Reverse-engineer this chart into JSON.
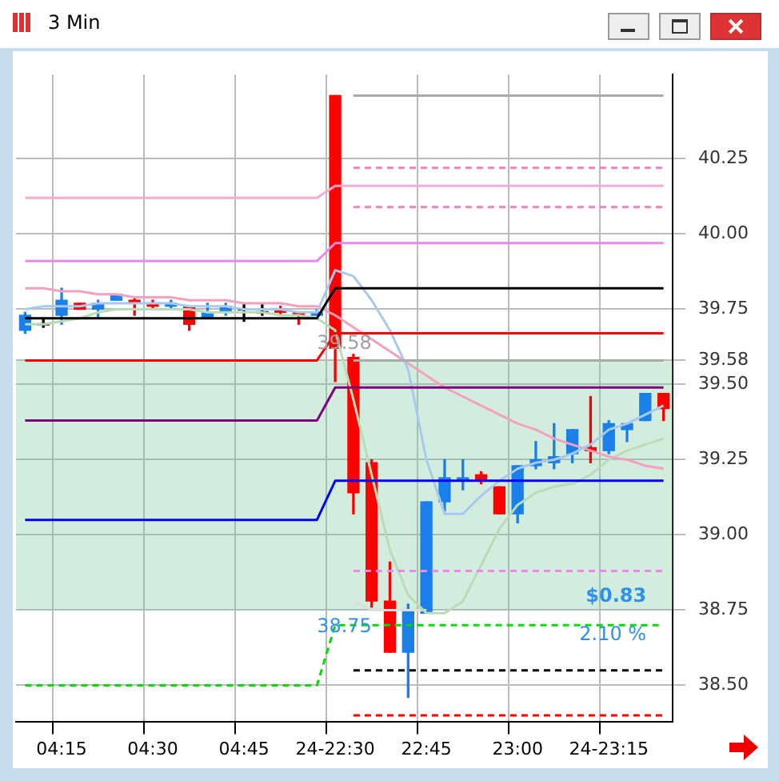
{
  "chart_data": {
    "type": "candlestick",
    "title": "3 Min",
    "categories": [
      null,
      null,
      "04:15",
      null,
      null,
      null,
      null,
      "04:30",
      null,
      null,
      null,
      null,
      "04:45",
      null,
      null,
      null,
      null,
      "24-22:30",
      null,
      null,
      null,
      null,
      "22:45",
      null,
      null,
      null,
      null,
      "23:00",
      null,
      null,
      null,
      null,
      "24-23:15",
      null,
      null,
      null
    ],
    "ohlc": [
      [
        39.68,
        39.74,
        39.67,
        39.73
      ],
      [
        39.7,
        39.72,
        39.69,
        39.7
      ],
      [
        39.73,
        39.82,
        39.7,
        39.78
      ],
      [
        39.77,
        39.77,
        39.75,
        39.75
      ],
      [
        39.75,
        39.78,
        39.72,
        39.77
      ],
      [
        39.78,
        39.8,
        39.78,
        39.8
      ],
      [
        39.78,
        39.79,
        39.73,
        39.77
      ],
      [
        39.77,
        39.78,
        39.75,
        39.76
      ],
      [
        39.76,
        39.78,
        39.75,
        39.77
      ],
      [
        39.76,
        39.76,
        39.68,
        39.7
      ],
      [
        39.72,
        39.77,
        39.72,
        39.74
      ],
      [
        39.74,
        39.77,
        39.73,
        39.76
      ],
      [
        39.75,
        39.77,
        39.71,
        39.75
      ],
      [
        39.74,
        39.77,
        39.73,
        39.74
      ],
      [
        39.75,
        39.76,
        39.73,
        39.74
      ],
      [
        39.74,
        39.74,
        39.7,
        39.73
      ],
      [
        39.73,
        39.75,
        39.73,
        39.74
      ],
      [
        40.46,
        40.46,
        39.51,
        39.62
      ],
      [
        39.59,
        39.6,
        39.07,
        39.14
      ],
      [
        39.24,
        39.25,
        38.76,
        38.78
      ],
      [
        38.78,
        38.91,
        38.61,
        38.61
      ],
      [
        38.61,
        38.77,
        38.46,
        38.75
      ],
      [
        38.74,
        39.11,
        38.74,
        39.11
      ],
      [
        39.11,
        39.25,
        39.08,
        39.19
      ],
      [
        39.18,
        39.25,
        39.15,
        39.19
      ],
      [
        39.2,
        39.21,
        39.17,
        39.18
      ],
      [
        39.16,
        39.16,
        39.07,
        39.07
      ],
      [
        39.07,
        39.23,
        39.04,
        39.23
      ],
      [
        39.23,
        39.31,
        39.22,
        39.25
      ],
      [
        39.24,
        39.37,
        39.22,
        39.26
      ],
      [
        39.27,
        39.35,
        39.24,
        39.35
      ],
      [
        39.29,
        39.46,
        39.24,
        39.28
      ],
      [
        39.28,
        39.38,
        39.27,
        39.37
      ],
      [
        39.35,
        39.37,
        39.31,
        39.37
      ],
      [
        39.38,
        39.47,
        39.38,
        39.47
      ],
      [
        39.47,
        39.47,
        39.38,
        39.42
      ]
    ],
    "colors": [
      "#1a7fe8",
      "#000000",
      "#1a7fe8",
      "#ff0000",
      "#1a7fe8",
      "#1a7fe8",
      "#ff0000",
      "#ff0000",
      "#1a7fe8",
      "#ff0000",
      "#1a7fe8",
      "#1a7fe8",
      "#000000",
      "#000000",
      "#ff0000",
      "#ff0000",
      "#1a7fe8",
      "#ff0000",
      "#ff0000",
      "#ff0000",
      "#ff0000",
      "#1a7fe8",
      "#1a7fe8",
      "#1a7fe8",
      "#1a7fe8",
      "#ff0000",
      "#ff0000",
      "#1a7fe8",
      "#1a7fe8",
      "#1a7fe8",
      "#1a7fe8",
      "#ff0000",
      "#1a7fe8",
      "#1a7fe8",
      "#1a7fe8",
      "#ff0000"
    ],
    "series": [
      {
        "type": "line",
        "color": "#f9a8d4",
        "values": [
          40.12,
          40.12,
          40.12,
          40.12,
          40.12,
          40.12,
          40.12,
          40.12,
          40.12,
          40.12,
          40.12,
          40.12,
          40.12,
          40.12,
          40.12,
          40.12,
          40.12,
          40.16,
          40.16,
          40.16,
          40.16,
          40.16,
          40.16,
          40.16,
          40.16,
          40.16,
          40.16,
          40.16,
          40.16,
          40.16,
          40.16,
          40.16,
          40.16,
          40.16,
          40.16,
          40.16
        ]
      },
      {
        "type": "line",
        "color": "#e88ae8",
        "values": [
          39.91,
          39.91,
          39.91,
          39.91,
          39.91,
          39.91,
          39.91,
          39.91,
          39.91,
          39.91,
          39.91,
          39.91,
          39.91,
          39.91,
          39.91,
          39.91,
          39.91,
          39.97,
          39.97,
          39.97,
          39.97,
          39.97,
          39.97,
          39.97,
          39.97,
          39.97,
          39.97,
          39.97,
          39.97,
          39.97,
          39.97,
          39.97,
          39.97,
          39.97,
          39.97,
          39.97
        ]
      },
      {
        "type": "line",
        "color": "#000000",
        "values": [
          39.72,
          39.72,
          39.72,
          39.72,
          39.72,
          39.72,
          39.72,
          39.72,
          39.72,
          39.72,
          39.72,
          39.72,
          39.72,
          39.72,
          39.72,
          39.72,
          39.72,
          39.82,
          39.82,
          39.82,
          39.82,
          39.82,
          39.82,
          39.82,
          39.82,
          39.82,
          39.82,
          39.82,
          39.82,
          39.82,
          39.82,
          39.82,
          39.82,
          39.82,
          39.82,
          39.82
        ]
      },
      {
        "type": "line",
        "color": "#ff0000",
        "values": [
          39.58,
          39.58,
          39.58,
          39.58,
          39.58,
          39.58,
          39.58,
          39.58,
          39.58,
          39.58,
          39.58,
          39.58,
          39.58,
          39.58,
          39.58,
          39.58,
          39.58,
          39.67,
          39.67,
          39.67,
          39.67,
          39.67,
          39.67,
          39.67,
          39.67,
          39.67,
          39.67,
          39.67,
          39.67,
          39.67,
          39.67,
          39.67,
          39.67,
          39.67,
          39.67,
          39.67
        ]
      },
      {
        "type": "line",
        "color": "#800080",
        "values": [
          39.38,
          39.38,
          39.38,
          39.38,
          39.38,
          39.38,
          39.38,
          39.38,
          39.38,
          39.38,
          39.38,
          39.38,
          39.38,
          39.38,
          39.38,
          39.38,
          39.38,
          39.49,
          39.49,
          39.49,
          39.49,
          39.49,
          39.49,
          39.49,
          39.49,
          39.49,
          39.49,
          39.49,
          39.49,
          39.49,
          39.49,
          39.49,
          39.49,
          39.49,
          39.49,
          39.49
        ]
      },
      {
        "type": "line",
        "color": "#0000ff",
        "values": [
          39.05,
          39.05,
          39.05,
          39.05,
          39.05,
          39.05,
          39.05,
          39.05,
          39.05,
          39.05,
          39.05,
          39.05,
          39.05,
          39.05,
          39.05,
          39.05,
          39.05,
          39.18,
          39.18,
          39.18,
          39.18,
          39.18,
          39.18,
          39.18,
          39.18,
          39.18,
          39.18,
          39.18,
          39.18,
          39.18,
          39.18,
          39.18,
          39.18,
          39.18,
          39.18,
          39.18
        ]
      },
      {
        "type": "line",
        "color": "#00dd00",
        "line_style": "dashed",
        "values": [
          38.5,
          38.5,
          38.5,
          38.5,
          38.5,
          38.5,
          38.5,
          38.5,
          38.5,
          38.5,
          38.5,
          38.5,
          38.5,
          38.5,
          38.5,
          38.5,
          38.5,
          38.7,
          38.7,
          38.7,
          38.7,
          38.7,
          38.7,
          38.7,
          38.7,
          38.7,
          38.7,
          38.7,
          38.7,
          38.7,
          38.7,
          38.7,
          38.7,
          38.7,
          38.7,
          38.7
        ]
      },
      {
        "type": "line",
        "color": "#aaaaaa",
        "values": [
          null,
          null,
          null,
          null,
          null,
          null,
          null,
          null,
          null,
          null,
          null,
          null,
          null,
          null,
          null,
          null,
          null,
          null,
          40.46,
          40.46,
          40.46,
          40.46,
          40.46,
          40.46,
          40.46,
          40.46,
          40.46,
          40.46,
          40.46,
          40.46,
          40.46,
          40.46,
          40.46,
          40.46,
          40.46,
          40.46
        ]
      },
      {
        "type": "line",
        "color": "#f080c0",
        "line_style": "dashed",
        "values": [
          null,
          null,
          null,
          null,
          null,
          null,
          null,
          null,
          null,
          null,
          null,
          null,
          null,
          null,
          null,
          null,
          null,
          null,
          40.22,
          40.22,
          40.22,
          40.22,
          40.22,
          40.22,
          40.22,
          40.22,
          40.22,
          40.22,
          40.22,
          40.22,
          40.22,
          40.22,
          40.22,
          40.22,
          40.22,
          40.22
        ]
      },
      {
        "type": "line",
        "color": "#f080c0",
        "line_style": "dashed",
        "values": [
          null,
          null,
          null,
          null,
          null,
          null,
          null,
          null,
          null,
          null,
          null,
          null,
          null,
          null,
          null,
          null,
          null,
          null,
          40.09,
          40.09,
          40.09,
          40.09,
          40.09,
          40.09,
          40.09,
          40.09,
          40.09,
          40.09,
          40.09,
          40.09,
          40.09,
          40.09,
          40.09,
          40.09,
          40.09,
          40.09
        ]
      },
      {
        "type": "line",
        "color": "#aaaaaa",
        "values": [
          null,
          null,
          null,
          null,
          null,
          null,
          null,
          null,
          null,
          null,
          null,
          null,
          null,
          null,
          null,
          null,
          null,
          null,
          39.58,
          39.58,
          39.58,
          39.58,
          39.58,
          39.58,
          39.58,
          39.58,
          39.58,
          39.58,
          39.58,
          39.58,
          39.58,
          39.58,
          39.58,
          39.58,
          39.58,
          39.58
        ]
      },
      {
        "type": "line",
        "color": "#e88ae8",
        "line_style": "dashed",
        "values": [
          null,
          null,
          null,
          null,
          null,
          null,
          null,
          null,
          null,
          null,
          null,
          null,
          null,
          null,
          null,
          null,
          null,
          null,
          38.88,
          null,
          38.88,
          38.88,
          38.88,
          38.88,
          38.88,
          38.88,
          38.88,
          38.88,
          38.88,
          38.88,
          38.88,
          38.88,
          38.88,
          38.88,
          38.88,
          38.88
        ]
      },
      {
        "type": "line",
        "color": "#000000",
        "line_style": "dashed",
        "values": [
          null,
          null,
          null,
          null,
          null,
          null,
          null,
          null,
          null,
          null,
          null,
          null,
          null,
          null,
          null,
          null,
          null,
          null,
          38.55,
          38.55,
          38.55,
          38.55,
          38.55,
          38.55,
          38.55,
          38.55,
          38.55,
          38.55,
          38.55,
          38.55,
          38.55,
          38.55,
          38.55,
          38.55,
          38.55,
          38.55
        ]
      },
      {
        "type": "line",
        "color": "#ff0000",
        "line_style": "dashed",
        "values": [
          null,
          null,
          null,
          null,
          null,
          null,
          null,
          null,
          null,
          null,
          null,
          null,
          null,
          null,
          null,
          null,
          null,
          null,
          38.4,
          38.4,
          38.4,
          38.4,
          38.4,
          38.4,
          38.4,
          38.4,
          38.4,
          38.4,
          38.4,
          38.4,
          38.4,
          38.4,
          38.4,
          38.4,
          38.4,
          38.4
        ]
      },
      {
        "type": "line",
        "color": "#a8c8f0",
        "values": [
          39.75,
          39.76,
          39.76,
          39.76,
          39.77,
          39.77,
          39.77,
          39.77,
          39.77,
          39.76,
          39.76,
          39.76,
          39.75,
          39.75,
          39.75,
          39.74,
          39.74,
          39.88,
          39.86,
          39.78,
          39.68,
          39.55,
          39.25,
          39.07,
          39.07,
          39.13,
          39.18,
          39.22,
          39.24,
          39.25,
          39.27,
          39.3,
          39.35,
          39.37,
          39.4,
          39.43
        ]
      },
      {
        "type": "line",
        "color": "#f4a0c0",
        "values": [
          39.82,
          39.82,
          39.81,
          39.81,
          39.8,
          39.8,
          39.79,
          39.79,
          39.79,
          39.78,
          39.78,
          39.78,
          39.77,
          39.77,
          39.77,
          39.76,
          39.76,
          39.73,
          39.69,
          39.65,
          39.61,
          39.57,
          39.53,
          39.49,
          39.46,
          39.43,
          39.4,
          39.37,
          39.35,
          39.32,
          39.3,
          39.28,
          39.26,
          39.25,
          39.23,
          39.22
        ]
      },
      {
        "type": "line",
        "color": "#b8dcb8",
        "values": [
          39.7,
          39.7,
          39.71,
          39.72,
          39.74,
          39.75,
          39.75,
          39.75,
          39.75,
          39.75,
          39.74,
          39.74,
          39.74,
          39.74,
          39.73,
          39.73,
          39.72,
          39.68,
          39.45,
          39.2,
          38.95,
          38.8,
          38.74,
          38.74,
          38.78,
          38.9,
          39.02,
          39.1,
          39.14,
          39.16,
          39.17,
          39.2,
          39.25,
          39.28,
          39.3,
          39.32
        ]
      },
      {
        "type": "line",
        "color": "#dddddd",
        "values": [
          null,
          null,
          null,
          null,
          null,
          null,
          null,
          null,
          null,
          null,
          null,
          null,
          null,
          null,
          null,
          null,
          null,
          null,
          38.78,
          38.75,
          38.75,
          38.75,
          38.75,
          null,
          null,
          null,
          null,
          null,
          null,
          null,
          null,
          null,
          null,
          null,
          null,
          null
        ]
      }
    ],
    "bands": [
      {
        "axis": "y",
        "from": 38.75,
        "to": 39.58,
        "color": "#7fcc9f"
      }
    ],
    "annotations": [
      {
        "text": "39.58",
        "y": 39.58
      },
      {
        "text": "38.75",
        "y": 38.75
      },
      {
        "text": "$0.83",
        "y": 38.75
      },
      {
        "text": "2.10 %",
        "y": 38.75
      }
    ],
    "ylim": [
      38.38,
      40.53
    ],
    "yticks": [
      {
        "value": 38.5,
        "label": "38.50"
      },
      {
        "value": 38.75,
        "label": "38.75"
      },
      {
        "value": 39,
        "label": "39.00"
      },
      {
        "value": 39.25,
        "label": "39.25"
      },
      {
        "value": 39.5,
        "label": "39.50"
      },
      {
        "value": 39.58,
        "label": "39.58"
      },
      {
        "value": 39.75,
        "label": "39.75"
      },
      {
        "value": 40,
        "label": "40.00"
      },
      {
        "value": 40.25,
        "label": "40.25"
      }
    ],
    "grid": true,
    "legend": false
  }
}
